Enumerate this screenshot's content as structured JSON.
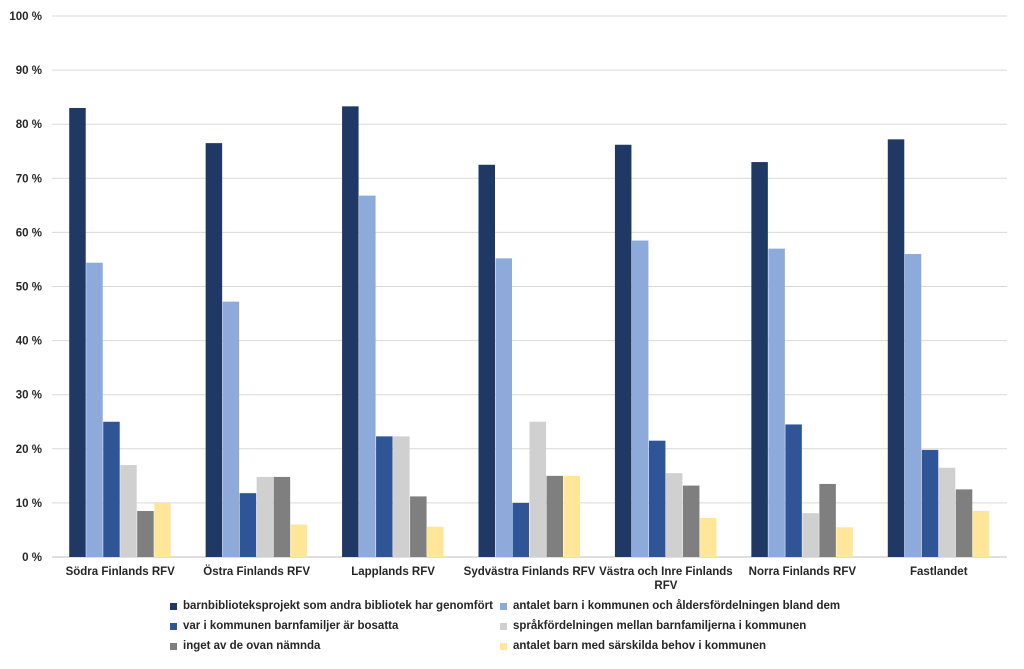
{
  "chart_data": {
    "type": "bar",
    "title": "",
    "xlabel": "",
    "ylabel": "",
    "ylim": [
      0,
      100
    ],
    "y_ticks": [
      "0 %",
      "10 %",
      "20 %",
      "30 %",
      "40 %",
      "50 %",
      "60 %",
      "70 %",
      "80 %",
      "90 %",
      "100 %"
    ],
    "grid": "horizontal",
    "legend_position": "bottom",
    "categories": [
      "Södra Finlands RFV",
      "Östra Finlands RFV",
      "Lapplands RFV",
      "Sydvästra Finlands RFV",
      "Västra och Inre Finlands RFV",
      "Norra Finlands RFV",
      "Fastlandet"
    ],
    "category_lines": [
      [
        "Södra Finlands RFV"
      ],
      [
        "Östra Finlands RFV"
      ],
      [
        "Lapplands RFV"
      ],
      [
        "Sydvästra Finlands RFV"
      ],
      [
        "Västra och Inre Finlands",
        "RFV"
      ],
      [
        "Norra Finlands RFV"
      ],
      [
        "Fastlandet"
      ]
    ],
    "series": [
      {
        "name": "barnbiblioteksprojekt som andra bibliotek har genomfört",
        "color": "#1f3864",
        "values": [
          83,
          76.5,
          83.3,
          72.5,
          76.2,
          73,
          77.2
        ]
      },
      {
        "name": "antalet barn i kommunen och åldersfördelningen bland dem",
        "color": "#8eaadb",
        "values": [
          54.4,
          47.2,
          66.8,
          55.2,
          58.5,
          57,
          56
        ]
      },
      {
        "name": "var i kommunen barnfamiljer är bosatta",
        "color": "#2f5597",
        "values": [
          25,
          11.8,
          22.3,
          10,
          21.5,
          24.5,
          19.8
        ]
      },
      {
        "name": "språkfördelningen mellan barnfamiljerna i kommunen",
        "color": "#d0d0d0",
        "values": [
          17,
          14.8,
          22.3,
          25,
          15.5,
          8.1,
          16.5
        ]
      },
      {
        "name": "inget av de ovan nämnda",
        "color": "#7f7f7f",
        "values": [
          8.5,
          14.8,
          11.2,
          15,
          13.2,
          13.5,
          12.5
        ]
      },
      {
        "name": "antalet barn med särskilda behov i kommunen",
        "color": "#ffe699",
        "values": [
          10,
          6,
          5.6,
          15,
          7.2,
          5.5,
          8.5
        ]
      }
    ]
  }
}
